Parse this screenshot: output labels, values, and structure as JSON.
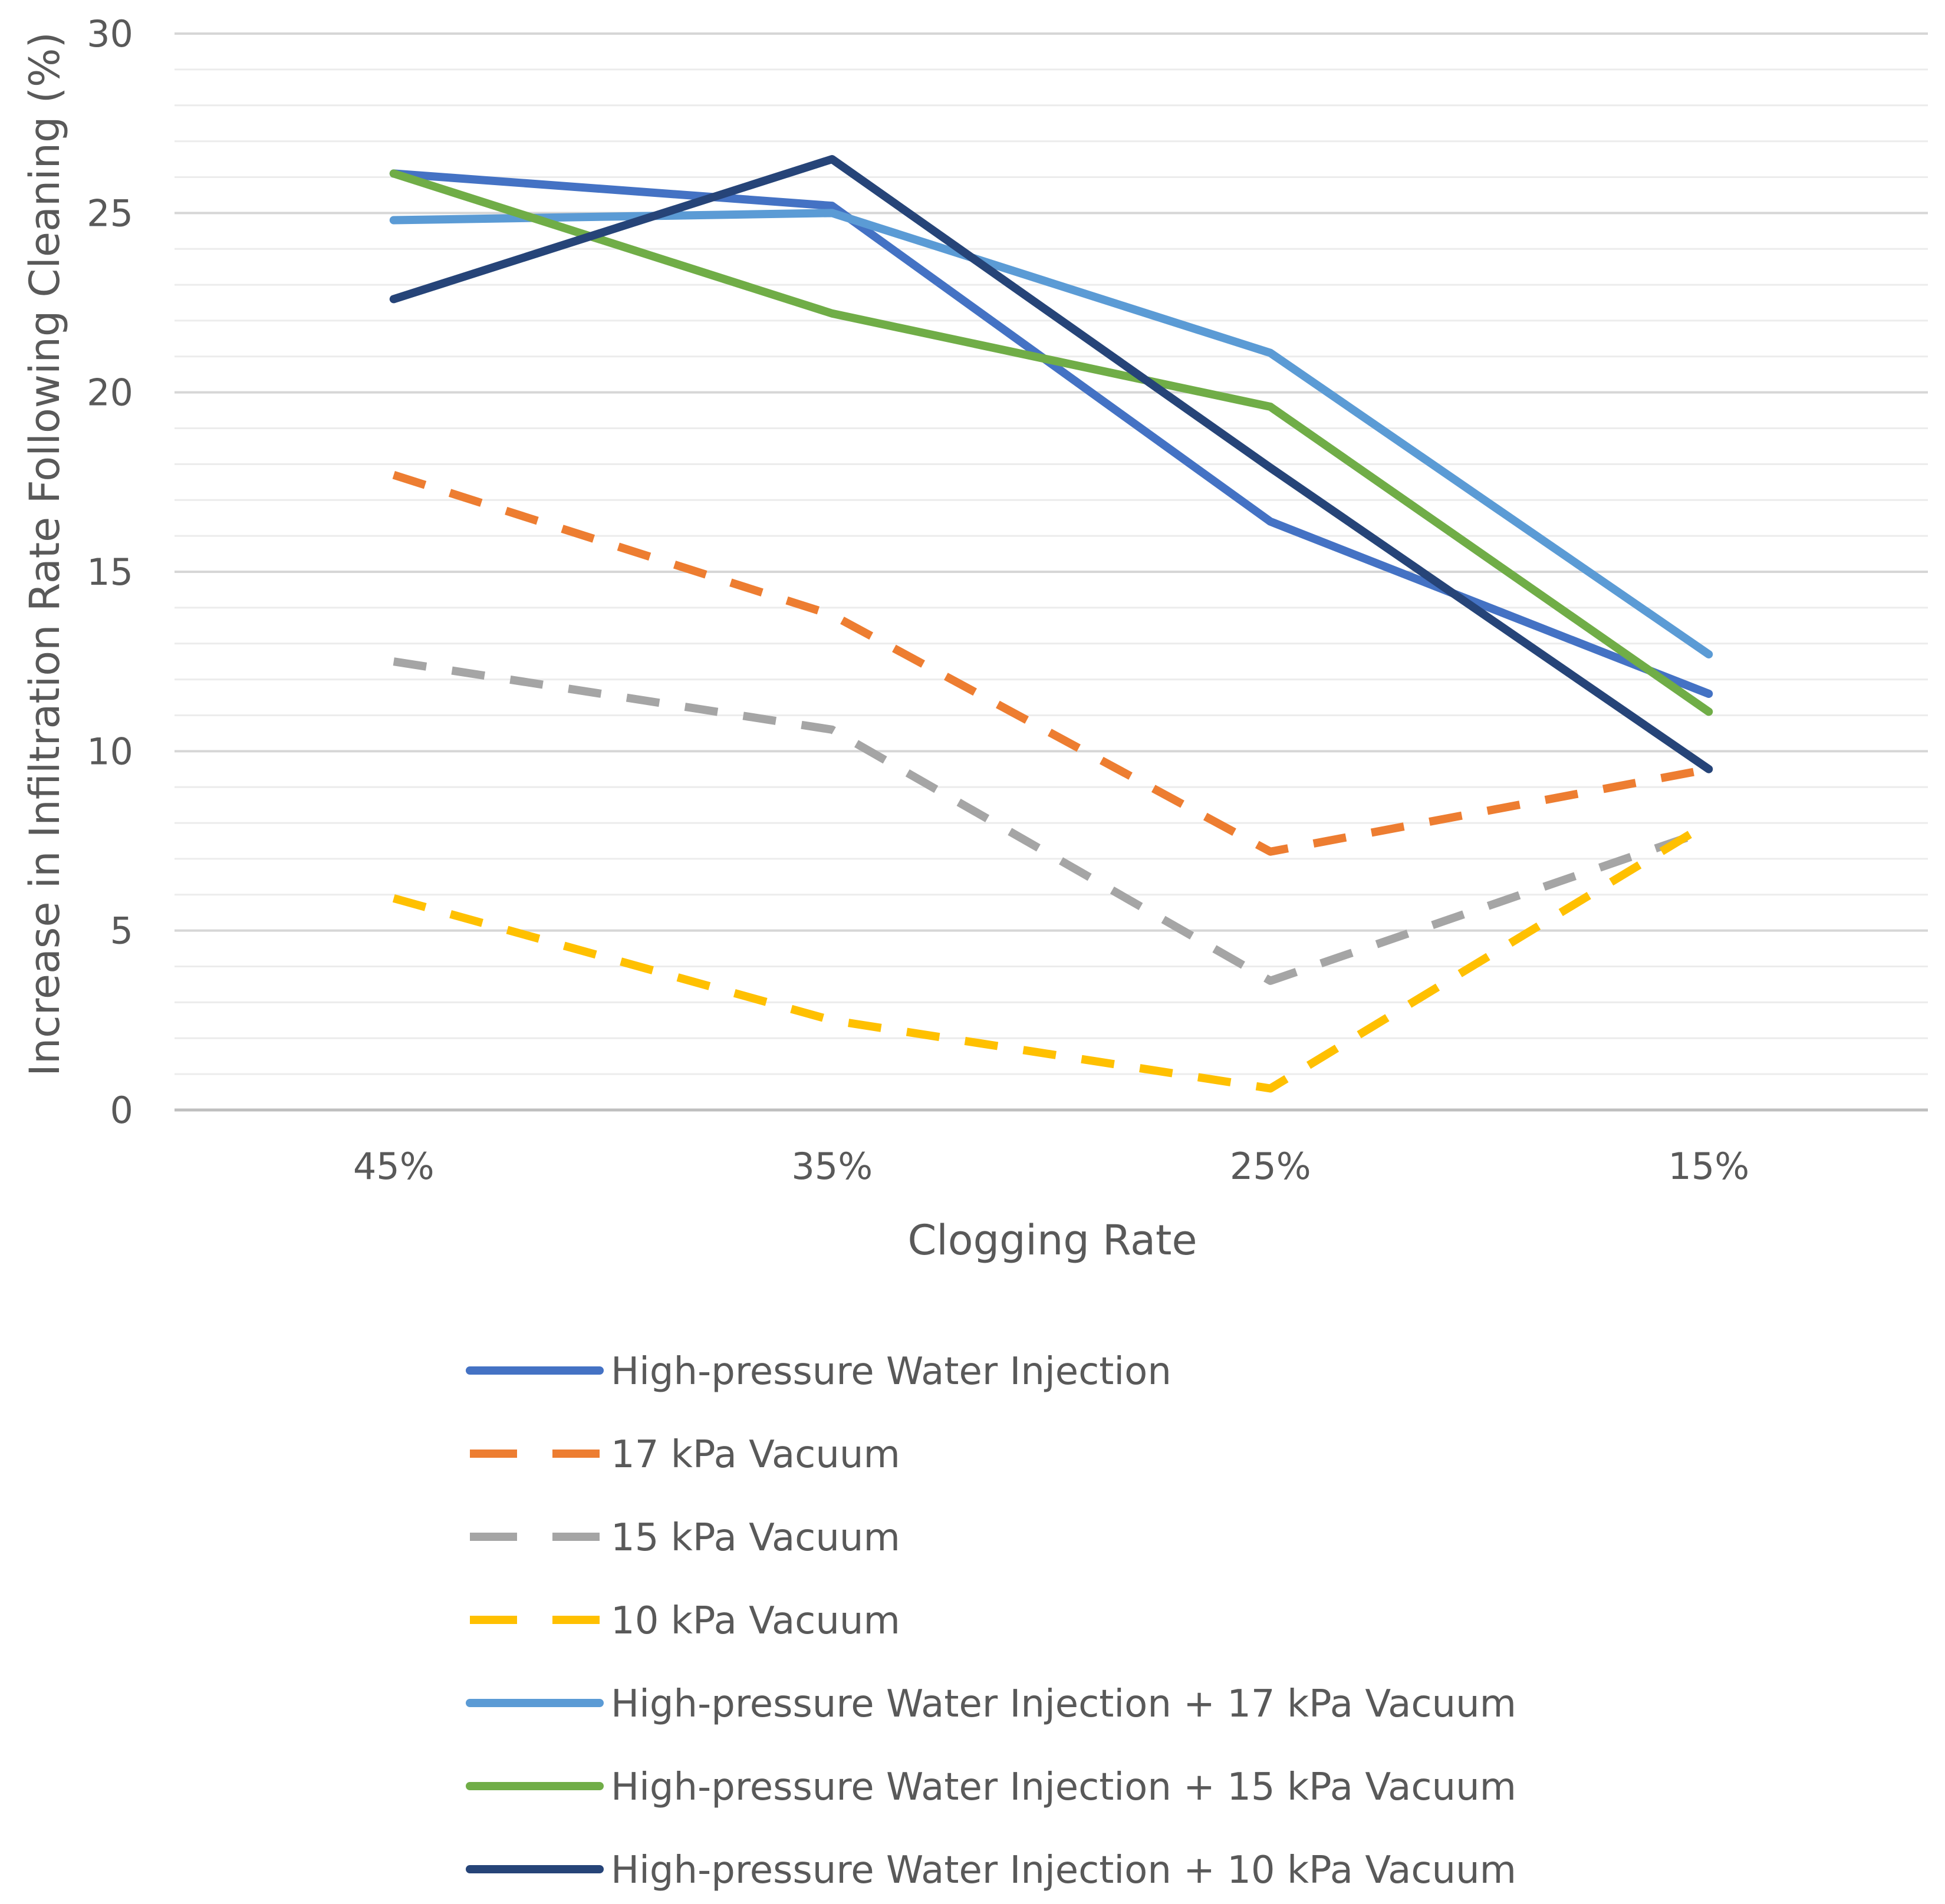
{
  "chart_data": {
    "type": "line",
    "title": "",
    "xlabel": "Clogging Rate",
    "ylabel": "Increase in Infiltration Rate Following Cleaning (%)",
    "categories": [
      "45%",
      "35%",
      "25%",
      "15%"
    ],
    "ylim": [
      0,
      30
    ],
    "yticks": [
      "0",
      "5",
      "10",
      "15",
      "20",
      "25",
      "30"
    ],
    "grid": true,
    "legend_position": "bottom",
    "series": [
      {
        "name": "High-pressure Water Injection",
        "values": [
          26.1,
          25.2,
          16.4,
          11.6
        ],
        "color": "#4472C4",
        "dashed": false
      },
      {
        "name": "17 kPa Vacuum",
        "values": [
          17.7,
          13.8,
          7.2,
          9.5
        ],
        "color": "#ED7D31",
        "dashed": true
      },
      {
        "name": "15 kPa Vacuum",
        "values": [
          12.5,
          10.6,
          3.6,
          7.8
        ],
        "color": "#A5A5A5",
        "dashed": true
      },
      {
        "name": "10 kPa Vacuum",
        "values": [
          5.9,
          2.5,
          0.6,
          8.0
        ],
        "color": "#FFC000",
        "dashed": true
      },
      {
        "name": "High-pressure Water Injection + 17 kPa Vacuum",
        "values": [
          24.8,
          25.0,
          21.1,
          12.7
        ],
        "color": "#5B9BD5",
        "dashed": false
      },
      {
        "name": "High-pressure Water Injection + 15 kPa Vacuum",
        "values": [
          26.1,
          22.2,
          19.6,
          11.1
        ],
        "color": "#70AD47",
        "dashed": false
      },
      {
        "name": "High-pressure Water Injection + 10 kPa Vacuum",
        "values": [
          22.6,
          26.5,
          17.9,
          9.5
        ],
        "color": "#264478",
        "dashed": false
      }
    ]
  }
}
